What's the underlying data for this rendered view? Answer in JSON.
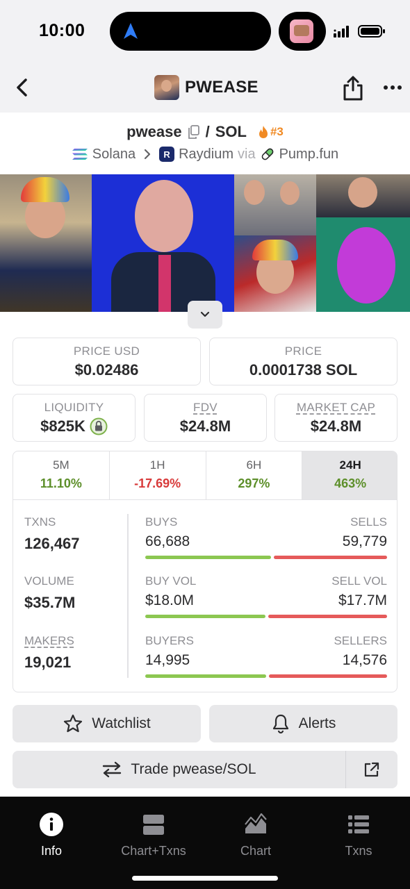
{
  "status_bar": {
    "time": "10:00"
  },
  "header": {
    "title": "PWEASE"
  },
  "pair": {
    "base": "pwease",
    "separator": "/",
    "quote": "SOL",
    "rank": "#3",
    "chain": "Solana",
    "dex": "Raydium",
    "via_label": "via",
    "launchpad": "Pump.fun"
  },
  "price_usd": {
    "label": "PRICE USD",
    "value": "$0.02486"
  },
  "price_native": {
    "label": "PRICE",
    "value": "0.0001738 SOL"
  },
  "liquidity": {
    "label": "LIQUIDITY",
    "value": "$825K"
  },
  "fdv": {
    "label": "FDV",
    "value": "$24.8M"
  },
  "market_cap": {
    "label": "MARKET CAP",
    "value": "$24.8M"
  },
  "timeframes": [
    {
      "label": "5M",
      "value": "11.10%",
      "trend": "up"
    },
    {
      "label": "1H",
      "value": "-17.69%",
      "trend": "down"
    },
    {
      "label": "6H",
      "value": "297%",
      "trend": "up"
    },
    {
      "label": "24H",
      "value": "463%",
      "trend": "up",
      "selected": true
    }
  ],
  "stats": {
    "txns": {
      "label": "TXNS",
      "value": "126,467"
    },
    "buys": {
      "label": "BUYS",
      "value": "66,688"
    },
    "sells": {
      "label": "SELLS",
      "value": "59,779"
    },
    "buy_share": 0.527,
    "volume": {
      "label": "VOLUME",
      "value": "$35.7M"
    },
    "buy_vol": {
      "label": "BUY VOL",
      "value": "$18.0M"
    },
    "sell_vol": {
      "label": "SELL VOL",
      "value": "$17.7M"
    },
    "buy_vol_share": 0.504,
    "makers": {
      "label": "MAKERS",
      "value": "19,021"
    },
    "buyers": {
      "label": "BUYERS",
      "value": "14,995"
    },
    "sellers": {
      "label": "SELLERS",
      "value": "14,576"
    },
    "buyer_share": 0.507
  },
  "actions": {
    "watchlist": "Watchlist",
    "alerts": "Alerts",
    "trade": "Trade pwease/SOL"
  },
  "bottom_nav": [
    {
      "label": "Info",
      "active": true
    },
    {
      "label": "Chart+Txns"
    },
    {
      "label": "Chart"
    },
    {
      "label": "Txns"
    }
  ],
  "colors": {
    "positive": "#5d8f2a",
    "negative": "#d83a3a",
    "buy_bar": "#8cc751",
    "sell_bar": "#e55a5a",
    "rank": "#f08a24"
  }
}
